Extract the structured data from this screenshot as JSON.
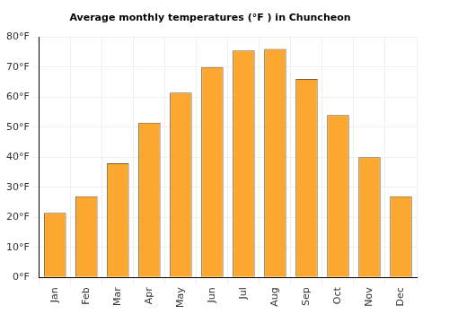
{
  "chart_data": {
    "type": "bar",
    "title": "Average monthly temperatures (°F ) in Chuncheon",
    "categories": [
      "Jan",
      "Feb",
      "Mar",
      "Apr",
      "May",
      "Jun",
      "Jul",
      "Aug",
      "Sep",
      "Oct",
      "Nov",
      "Dec"
    ],
    "values": [
      21.5,
      27,
      38,
      51.5,
      61.5,
      70,
      75.5,
      76,
      66,
      54,
      40,
      27
    ],
    "color": "#fba730",
    "ylim": [
      0,
      80
    ],
    "yticks": [
      {
        "value": 0,
        "label": "0°F"
      },
      {
        "value": 10,
        "label": "10°F"
      },
      {
        "value": 20,
        "label": "20°F"
      },
      {
        "value": 30,
        "label": "30°F"
      },
      {
        "value": 40,
        "label": "40°F"
      },
      {
        "value": 50,
        "label": "50°F"
      },
      {
        "value": 60,
        "label": "60°F"
      },
      {
        "value": 70,
        "label": "70°F"
      },
      {
        "value": 80,
        "label": "80°F"
      }
    ],
    "grid": true
  }
}
